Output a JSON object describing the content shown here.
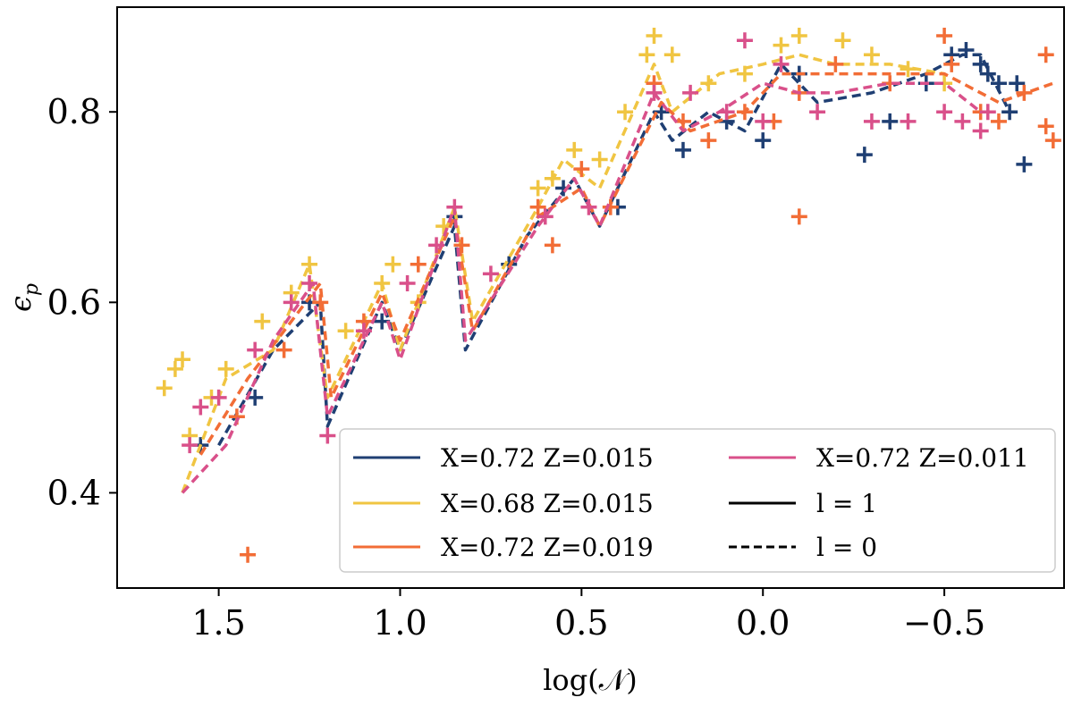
{
  "chart_data": {
    "type": "scatter",
    "xlabel": "log(𝒩)",
    "ylabel": "ϵ",
    "ylabel_sub": "p",
    "xlim": [
      1.78,
      -0.83
    ],
    "ylim": [
      0.3,
      0.91
    ],
    "x_inverted": true,
    "xticks": [
      {
        "value": 1.5,
        "label": "1.5"
      },
      {
        "value": 1.0,
        "label": "1.0"
      },
      {
        "value": 0.5,
        "label": "0.5"
      },
      {
        "value": 0.0,
        "label": "0.0"
      },
      {
        "value": -0.5,
        "label": "−0.5"
      }
    ],
    "yticks": [
      {
        "value": 0.4,
        "label": "0.4"
      },
      {
        "value": 0.6,
        "label": "0.6"
      },
      {
        "value": 0.8,
        "label": "0.8"
      }
    ],
    "legend_position": "lower-right",
    "legend": [
      {
        "label": "X=0.72 Z=0.015",
        "color": "#1f3f73",
        "style": "solid"
      },
      {
        "label": "X=0.68 Z=0.015",
        "color": "#f0c542",
        "style": "solid"
      },
      {
        "label": "X=0.72 Z=0.019",
        "color": "#f26d36",
        "style": "solid"
      },
      {
        "label": "X=0.72 Z=0.011",
        "color": "#d9508a",
        "style": "solid"
      },
      {
        "label": "l = 1",
        "color": "#000000",
        "style": "solid"
      },
      {
        "label": "l = 0",
        "color": "#000000",
        "style": "dashed"
      }
    ],
    "series": [
      {
        "name": "X=0.72 Z=0.015",
        "color": "#1f3f73",
        "line": [
          [
            1.5,
            0.45
          ],
          [
            1.35,
            0.55
          ],
          [
            1.22,
            0.6
          ],
          [
            1.2,
            0.47
          ],
          [
            1.05,
            0.6
          ],
          [
            1.0,
            0.55
          ],
          [
            0.85,
            0.68
          ],
          [
            0.82,
            0.55
          ],
          [
            0.65,
            0.67
          ],
          [
            0.52,
            0.73
          ],
          [
            0.45,
            0.68
          ],
          [
            0.3,
            0.8
          ],
          [
            0.25,
            0.77
          ],
          [
            0.15,
            0.8
          ],
          [
            0.05,
            0.78
          ],
          [
            -0.05,
            0.85
          ],
          [
            -0.15,
            0.81
          ],
          [
            -0.3,
            0.82
          ],
          [
            -0.45,
            0.84
          ],
          [
            -0.55,
            0.86
          ],
          [
            -0.6,
            0.86
          ],
          [
            -0.68,
            0.8
          ]
        ],
        "points": [
          [
            1.55,
            0.45
          ],
          [
            1.4,
            0.5
          ],
          [
            1.25,
            0.6
          ],
          [
            1.05,
            0.58
          ],
          [
            0.85,
            0.69
          ],
          [
            0.7,
            0.64
          ],
          [
            0.55,
            0.72
          ],
          [
            0.4,
            0.7
          ],
          [
            0.28,
            0.8
          ],
          [
            0.22,
            0.76
          ],
          [
            0.1,
            0.79
          ],
          [
            0.0,
            0.77
          ],
          [
            -0.1,
            0.84
          ],
          [
            -0.28,
            0.755
          ],
          [
            -0.35,
            0.79
          ],
          [
            -0.45,
            0.83
          ],
          [
            -0.52,
            0.86
          ],
          [
            -0.56,
            0.865
          ],
          [
            -0.6,
            0.85
          ],
          [
            -0.62,
            0.84
          ],
          [
            -0.65,
            0.83
          ],
          [
            -0.7,
            0.83
          ],
          [
            -0.72,
            0.745
          ],
          [
            -0.68,
            0.8
          ]
        ]
      },
      {
        "name": "X=0.68 Z=0.015",
        "color": "#f0c542",
        "line": [
          [
            1.6,
            0.4
          ],
          [
            1.48,
            0.52
          ],
          [
            1.35,
            0.55
          ],
          [
            1.25,
            0.64
          ],
          [
            1.2,
            0.5
          ],
          [
            1.05,
            0.62
          ],
          [
            1.0,
            0.55
          ],
          [
            0.85,
            0.7
          ],
          [
            0.8,
            0.58
          ],
          [
            0.62,
            0.7
          ],
          [
            0.55,
            0.75
          ],
          [
            0.45,
            0.72
          ],
          [
            0.3,
            0.85
          ],
          [
            0.25,
            0.8
          ],
          [
            0.12,
            0.84
          ],
          [
            0.0,
            0.85
          ],
          [
            -0.1,
            0.86
          ],
          [
            -0.2,
            0.85
          ],
          [
            -0.35,
            0.85
          ],
          [
            -0.5,
            0.84
          ]
        ],
        "points": [
          [
            1.65,
            0.51
          ],
          [
            1.62,
            0.53
          ],
          [
            1.6,
            0.54
          ],
          [
            1.58,
            0.46
          ],
          [
            1.52,
            0.5
          ],
          [
            1.48,
            0.53
          ],
          [
            1.38,
            0.58
          ],
          [
            1.3,
            0.61
          ],
          [
            1.25,
            0.64
          ],
          [
            1.15,
            0.57
          ],
          [
            1.05,
            0.62
          ],
          [
            1.02,
            0.64
          ],
          [
            0.95,
            0.6
          ],
          [
            0.88,
            0.68
          ],
          [
            0.62,
            0.72
          ],
          [
            0.58,
            0.73
          ],
          [
            0.52,
            0.76
          ],
          [
            0.45,
            0.75
          ],
          [
            0.38,
            0.8
          ],
          [
            0.32,
            0.86
          ],
          [
            0.3,
            0.88
          ],
          [
            0.25,
            0.86
          ],
          [
            0.15,
            0.83
          ],
          [
            0.05,
            0.84
          ],
          [
            -0.05,
            0.87
          ],
          [
            -0.1,
            0.88
          ],
          [
            -0.22,
            0.875
          ],
          [
            -0.3,
            0.86
          ],
          [
            -0.4,
            0.845
          ],
          [
            -0.5,
            0.83
          ]
        ]
      },
      {
        "name": "X=0.72 Z=0.019",
        "color": "#f26d36",
        "line": [
          [
            1.55,
            0.44
          ],
          [
            1.42,
            0.52
          ],
          [
            1.3,
            0.58
          ],
          [
            1.22,
            0.62
          ],
          [
            1.19,
            0.5
          ],
          [
            1.05,
            0.61
          ],
          [
            1.0,
            0.56
          ],
          [
            0.85,
            0.69
          ],
          [
            0.8,
            0.57
          ],
          [
            0.62,
            0.69
          ],
          [
            0.5,
            0.72
          ],
          [
            0.45,
            0.68
          ],
          [
            0.28,
            0.81
          ],
          [
            0.2,
            0.78
          ],
          [
            0.05,
            0.8
          ],
          [
            -0.05,
            0.84
          ],
          [
            -0.2,
            0.84
          ],
          [
            -0.35,
            0.84
          ],
          [
            -0.5,
            0.84
          ],
          [
            -0.65,
            0.81
          ],
          [
            -0.8,
            0.83
          ]
        ],
        "points": [
          [
            1.42,
            0.335
          ],
          [
            1.45,
            0.48
          ],
          [
            1.32,
            0.55
          ],
          [
            1.22,
            0.6
          ],
          [
            1.1,
            0.58
          ],
          [
            0.95,
            0.64
          ],
          [
            0.83,
            0.66
          ],
          [
            0.62,
            0.7
          ],
          [
            0.58,
            0.66
          ],
          [
            0.5,
            0.74
          ],
          [
            0.42,
            0.7
          ],
          [
            0.3,
            0.83
          ],
          [
            0.22,
            0.79
          ],
          [
            0.15,
            0.77
          ],
          [
            0.05,
            0.8
          ],
          [
            -0.03,
            0.79
          ],
          [
            -0.1,
            0.69
          ],
          [
            -0.1,
            0.82
          ],
          [
            -0.2,
            0.85
          ],
          [
            -0.35,
            0.83
          ],
          [
            -0.5,
            0.88
          ],
          [
            -0.52,
            0.85
          ],
          [
            -0.6,
            0.8
          ],
          [
            -0.65,
            0.79
          ],
          [
            -0.72,
            0.82
          ],
          [
            -0.78,
            0.86
          ],
          [
            -0.78,
            0.785
          ],
          [
            -0.8,
            0.77
          ]
        ]
      },
      {
        "name": "X=0.72 Z=0.011",
        "color": "#d9508a",
        "line": [
          [
            1.6,
            0.4
          ],
          [
            1.48,
            0.45
          ],
          [
            1.35,
            0.56
          ],
          [
            1.24,
            0.62
          ],
          [
            1.2,
            0.48
          ],
          [
            1.05,
            0.6
          ],
          [
            1.0,
            0.54
          ],
          [
            0.85,
            0.7
          ],
          [
            0.82,
            0.56
          ],
          [
            0.62,
            0.68
          ],
          [
            0.52,
            0.73
          ],
          [
            0.45,
            0.68
          ],
          [
            0.3,
            0.82
          ],
          [
            0.22,
            0.78
          ],
          [
            0.12,
            0.8
          ],
          [
            0.0,
            0.83
          ],
          [
            -0.1,
            0.82
          ],
          [
            -0.2,
            0.82
          ],
          [
            -0.35,
            0.83
          ],
          [
            -0.5,
            0.83
          ],
          [
            -0.6,
            0.8
          ]
        ],
        "points": [
          [
            1.58,
            0.45
          ],
          [
            1.55,
            0.49
          ],
          [
            1.5,
            0.5
          ],
          [
            1.4,
            0.55
          ],
          [
            1.3,
            0.6
          ],
          [
            1.25,
            0.62
          ],
          [
            1.2,
            0.46
          ],
          [
            1.1,
            0.57
          ],
          [
            0.98,
            0.62
          ],
          [
            0.9,
            0.66
          ],
          [
            0.85,
            0.7
          ],
          [
            0.75,
            0.63
          ],
          [
            0.6,
            0.69
          ],
          [
            0.48,
            0.7
          ],
          [
            0.3,
            0.82
          ],
          [
            0.2,
            0.82
          ],
          [
            0.1,
            0.8
          ],
          [
            0.0,
            0.79
          ],
          [
            -0.05,
            0.85
          ],
          [
            0.05,
            0.875
          ],
          [
            -0.15,
            0.8
          ],
          [
            -0.3,
            0.79
          ],
          [
            -0.4,
            0.79
          ],
          [
            -0.5,
            0.8
          ],
          [
            -0.55,
            0.79
          ],
          [
            -0.6,
            0.78
          ],
          [
            -0.62,
            0.8
          ]
        ]
      }
    ]
  }
}
